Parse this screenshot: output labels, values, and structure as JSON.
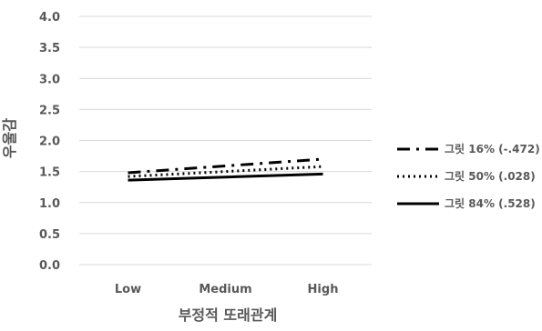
{
  "chart_data": {
    "type": "line",
    "title": "",
    "xlabel": "부정적 또래관계",
    "ylabel": "우울감",
    "categories": [
      "Low",
      "Medium",
      "High"
    ],
    "ylim": [
      0,
      4
    ],
    "yticks": [
      "0.0",
      "0.5",
      "1.0",
      "1.5",
      "2.0",
      "2.5",
      "3.0",
      "3.5",
      "4.0"
    ],
    "grid": true,
    "legend_position": "right",
    "series": [
      {
        "name": "그릿 16% (-.472)",
        "values": [
          1.48,
          1.59,
          1.7
        ],
        "style": "dash-dot",
        "color": "#000000"
      },
      {
        "name": "그릿 50% (.028)",
        "values": [
          1.42,
          1.5,
          1.58
        ],
        "style": "dotted",
        "color": "#000000"
      },
      {
        "name": "그릿 84% (.528)",
        "values": [
          1.36,
          1.41,
          1.46
        ],
        "style": "solid",
        "color": "#000000"
      }
    ]
  }
}
